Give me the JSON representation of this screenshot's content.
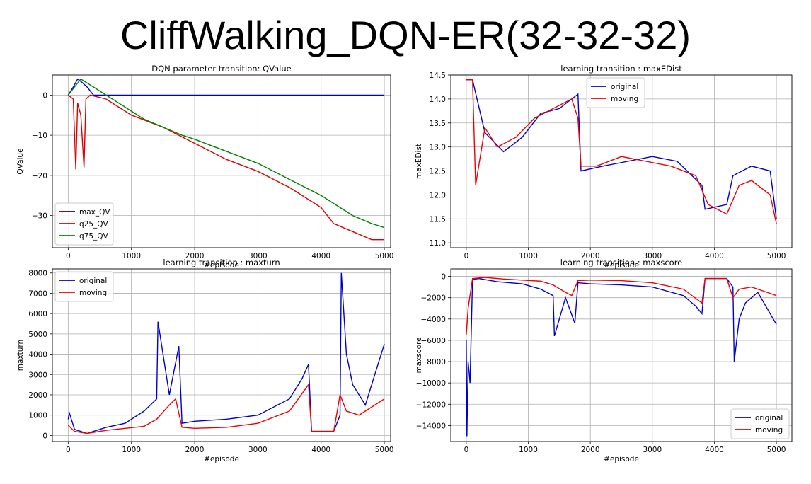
{
  "page": {
    "title": "CliffWalking_DQN-ER(32-32-32)"
  },
  "chart_data": [
    {
      "id": "qvalue",
      "type": "line",
      "title": "DQN parameter transition: QValue",
      "xlabel": "#episode",
      "ylabel": "QValue",
      "xlim": [
        -250,
        5100
      ],
      "ylim": [
        -38,
        5
      ],
      "xticks": [
        0,
        1000,
        2000,
        3000,
        4000,
        5000
      ],
      "yticks": [
        0,
        -10,
        -20,
        -30
      ],
      "grid": true,
      "legend": "lower-left",
      "series": [
        {
          "name": "max_QV",
          "color": "#0000cc",
          "x": [
            0,
            80,
            150,
            230,
            300,
            400,
            600,
            5000
          ],
          "y": [
            0,
            2,
            4,
            3,
            2,
            0,
            0,
            0
          ]
        },
        {
          "name": "q25_QV",
          "color": "#dd0000",
          "x": [
            0,
            80,
            120,
            150,
            200,
            250,
            280,
            350,
            600,
            800,
            1000,
            1500,
            2000,
            2500,
            3000,
            3500,
            4000,
            4200,
            4500,
            4800,
            5000
          ],
          "y": [
            0,
            -1,
            -18.5,
            -2,
            -5,
            -18,
            -1,
            0,
            -1,
            -3,
            -5,
            -8,
            -12,
            -16,
            -19,
            -23,
            -28,
            -32,
            -34,
            -36,
            -36
          ]
        },
        {
          "name": "q75_QV",
          "color": "#008000",
          "x": [
            0,
            100,
            200,
            300,
            400,
            500,
            600,
            800,
            1000,
            1200,
            1500,
            1800,
            2000,
            2500,
            3000,
            3500,
            4000,
            4200,
            4500,
            4800,
            5000
          ],
          "y": [
            0,
            2,
            4,
            3,
            2,
            1,
            0,
            -2,
            -4,
            -6,
            -8,
            -10,
            -11,
            -14,
            -17,
            -21,
            -25,
            -27,
            -30,
            -32,
            -33
          ]
        }
      ]
    },
    {
      "id": "maxedist",
      "type": "line",
      "title": "learning transition : maxEDist",
      "xlabel": "#episode",
      "ylabel": "maxEDist",
      "xlim": [
        -250,
        5250
      ],
      "ylim": [
        10.9,
        14.5
      ],
      "xticks": [
        0,
        1000,
        2000,
        3000,
        4000,
        5000
      ],
      "yticks": [
        11.0,
        11.5,
        12.0,
        12.5,
        13.0,
        13.5,
        14.0,
        14.5
      ],
      "grid": true,
      "legend": "top-left",
      "series": [
        {
          "name": "original",
          "color": "#0000cc",
          "x": [
            0,
            100,
            300,
            600,
            900,
            1200,
            1500,
            1800,
            1850,
            2200,
            2600,
            3000,
            3400,
            3800,
            3850,
            4200,
            4300,
            4600,
            4900,
            5000
          ],
          "y": [
            14.4,
            14.4,
            13.3,
            12.9,
            13.2,
            13.7,
            13.8,
            14.1,
            12.5,
            12.6,
            12.7,
            12.8,
            12.7,
            12.2,
            11.7,
            11.8,
            12.4,
            12.6,
            12.5,
            11.5
          ]
        },
        {
          "name": "moving",
          "color": "#ee0000",
          "x": [
            0,
            100,
            150,
            300,
            500,
            800,
            1100,
            1400,
            1700,
            1800,
            1850,
            2100,
            2500,
            2900,
            3300,
            3700,
            3900,
            4200,
            4400,
            4600,
            4900,
            5000
          ],
          "y": [
            14.4,
            14.4,
            12.2,
            13.4,
            13.0,
            13.2,
            13.6,
            13.8,
            14.0,
            13.6,
            12.6,
            12.6,
            12.8,
            12.7,
            12.6,
            12.4,
            11.8,
            11.6,
            12.2,
            12.3,
            12.0,
            11.4
          ]
        }
      ]
    },
    {
      "id": "maxturn",
      "type": "line",
      "title": "learning transition : maxturn",
      "xlabel": "#episode",
      "ylabel": "maxturn",
      "xlim": [
        -250,
        5100
      ],
      "ylim": [
        -300,
        8200
      ],
      "xticks": [
        0,
        1000,
        2000,
        3000,
        4000,
        5000
      ],
      "yticks": [
        0,
        1000,
        2000,
        3000,
        4000,
        5000,
        6000,
        7000,
        8000
      ],
      "grid": true,
      "legend": "top-left",
      "series": [
        {
          "name": "original",
          "color": "#0000cc",
          "x": [
            0,
            20,
            100,
            300,
            600,
            900,
            1200,
            1400,
            1420,
            1600,
            1750,
            1800,
            2000,
            2500,
            3000,
            3500,
            3700,
            3800,
            3850,
            4200,
            4300,
            4320,
            4400,
            4500,
            4700,
            4900,
            5000
          ],
          "y": [
            800,
            1100,
            300,
            100,
            400,
            600,
            1200,
            1800,
            5600,
            2000,
            4400,
            600,
            700,
            800,
            1000,
            1800,
            2800,
            3500,
            200,
            200,
            1000,
            8000,
            4000,
            2500,
            1500,
            3500,
            4500
          ]
        },
        {
          "name": "moving",
          "color": "#ee0000",
          "x": [
            0,
            100,
            300,
            600,
            900,
            1200,
            1400,
            1600,
            1700,
            1800,
            2000,
            2500,
            3000,
            3500,
            3800,
            3850,
            4200,
            4300,
            4400,
            4600,
            4900,
            5000
          ],
          "y": [
            500,
            200,
            100,
            250,
            350,
            450,
            800,
            1500,
            1800,
            400,
            350,
            400,
            600,
            1200,
            2500,
            200,
            200,
            2000,
            1200,
            1000,
            1600,
            1800
          ]
        }
      ]
    },
    {
      "id": "maxscore",
      "type": "line",
      "title": "learning transition : maxscore",
      "xlabel": "#episode",
      "ylabel": "maxscore",
      "xlim": [
        -250,
        5250
      ],
      "ylim": [
        -15500,
        700
      ],
      "xticks": [
        0,
        1000,
        2000,
        3000,
        4000,
        5000
      ],
      "yticks": [
        0,
        -2000,
        -4000,
        -6000,
        -8000,
        -10000,
        -12000,
        -14000
      ],
      "grid": true,
      "legend": "bottom-right",
      "series": [
        {
          "name": "original",
          "color": "#0000cc",
          "x": [
            0,
            10,
            30,
            60,
            100,
            200,
            500,
            900,
            1200,
            1400,
            1420,
            1600,
            1750,
            1800,
            2000,
            2500,
            3000,
            3500,
            3700,
            3800,
            3850,
            4200,
            4300,
            4320,
            4400,
            4500,
            4700,
            4900,
            5000
          ],
          "y": [
            -6000,
            -15000,
            -8000,
            -10000,
            -300,
            -200,
            -500,
            -700,
            -1200,
            -1800,
            -5600,
            -2000,
            -4400,
            -600,
            -700,
            -800,
            -1000,
            -1800,
            -2800,
            -3500,
            -200,
            -200,
            -1000,
            -8000,
            -4000,
            -2500,
            -1500,
            -3500,
            -4500
          ]
        },
        {
          "name": "moving",
          "color": "#ee0000",
          "x": [
            0,
            30,
            100,
            300,
            600,
            900,
            1200,
            1400,
            1600,
            1700,
            1800,
            2000,
            2500,
            3000,
            3500,
            3800,
            3850,
            4200,
            4300,
            4400,
            4600,
            4900,
            5000
          ],
          "y": [
            -5500,
            -3000,
            -200,
            -100,
            -250,
            -350,
            -450,
            -800,
            -1500,
            -1800,
            -400,
            -350,
            -400,
            -600,
            -1200,
            -2500,
            -200,
            -200,
            -2000,
            -1200,
            -1000,
            -1600,
            -1800
          ]
        }
      ]
    }
  ]
}
